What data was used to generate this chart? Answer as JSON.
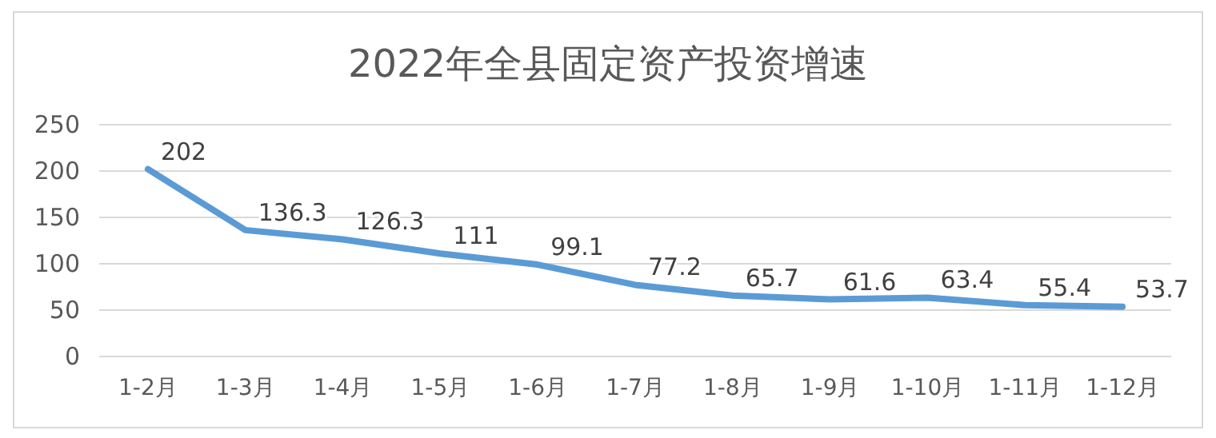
{
  "chart_data": {
    "type": "line",
    "title": "2022年全县固定资产投资增速",
    "categories": [
      "1-2月",
      "1-3月",
      "1-4月",
      "1-5月",
      "1-6月",
      "1-7月",
      "1-8月",
      "1-9月",
      "1-10月",
      "1-11月",
      "1-12月"
    ],
    "values": [
      202,
      136.3,
      126.3,
      111,
      99.1,
      77.2,
      65.7,
      61.6,
      63.4,
      55.4,
      53.7
    ],
    "color": "#5b9bd5",
    "ylim": [
      0,
      250
    ],
    "yticks": [
      0,
      50,
      100,
      150,
      200,
      250
    ],
    "grid": "y",
    "data_labels": true,
    "marker": "none",
    "line_style": "solid"
  }
}
